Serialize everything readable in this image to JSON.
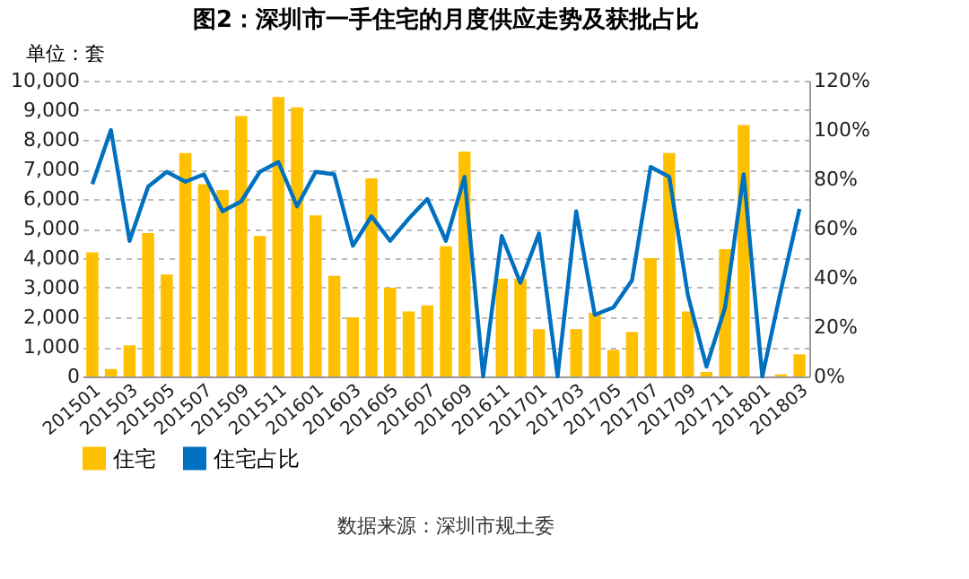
{
  "chart_data": {
    "type": "bar",
    "title": "图2：深圳市一手住宅的月度供应走势及获批占比",
    "ylabel": "单位：套",
    "categories": [
      "201501",
      null,
      "201503",
      null,
      "201505",
      null,
      "201507",
      null,
      "201509",
      null,
      "201511",
      null,
      "201601",
      null,
      "201603",
      null,
      "201605",
      null,
      "201607",
      null,
      "201609",
      null,
      "201611",
      null,
      "201701",
      null,
      "201703",
      null,
      "201705",
      null,
      "201707",
      null,
      "201709",
      null,
      "201711",
      null,
      "201801",
      null,
      "201803"
    ],
    "series": [
      {
        "name": "住宅",
        "color": "#ffc000",
        "values": [
          4200,
          250,
          1050,
          4850,
          3450,
          7550,
          6500,
          6300,
          8800,
          4750,
          9450,
          9100,
          5450,
          3400,
          2000,
          6700,
          3000,
          2200,
          2400,
          4400,
          7600,
          0,
          3300,
          3300,
          1600,
          0,
          1600,
          2150,
          900,
          1500,
          4000,
          7550,
          2200,
          150,
          4300,
          8500,
          0,
          70,
          750
        ]
      },
      {
        "name": "住宅占比",
        "type": "line",
        "axis": "y2",
        "color": "#0070c0",
        "values": [
          78,
          100,
          55,
          77,
          83,
          79,
          82,
          67,
          71,
          83,
          87,
          69,
          83,
          82,
          53,
          65,
          55,
          64,
          72,
          55,
          81,
          0,
          57,
          38,
          58,
          0,
          67,
          25,
          28,
          39,
          85,
          81,
          33,
          4,
          28,
          82,
          0,
          35,
          68
        ]
      }
    ],
    "ylim": [
      0,
      10000
    ],
    "yticks": [
      0,
      {
        "value": 1000,
        "label": "1,000"
      },
      {
        "value": 2000,
        "label": "2,000"
      },
      {
        "value": 3000,
        "label": "3,000"
      },
      {
        "value": 4000,
        "label": "4,000"
      },
      {
        "value": 5000,
        "label": "5,000"
      },
      {
        "value": 6000,
        "label": "6,000"
      },
      {
        "value": 7000,
        "label": "7,000"
      },
      {
        "value": 8000,
        "label": "8,000"
      },
      {
        "value": 9000,
        "label": "9,000"
      },
      {
        "value": 10000,
        "label": "10,000"
      }
    ],
    "y2lim": [
      0,
      120
    ],
    "y2ticks": [
      {
        "value": 0,
        "label": "0%"
      },
      {
        "value": 20,
        "label": "20%"
      },
      {
        "value": 40,
        "label": "40%"
      },
      {
        "value": 60,
        "label": "60%"
      },
      {
        "value": 80,
        "label": "80%"
      },
      {
        "value": 100,
        "label": "100%"
      },
      {
        "value": 120,
        "label": "120%"
      }
    ],
    "grid": "y",
    "legend": "bottom",
    "line_style": "solid",
    "marker": "none",
    "annotations": [
      "数据来源：深圳市规土委"
    ]
  }
}
